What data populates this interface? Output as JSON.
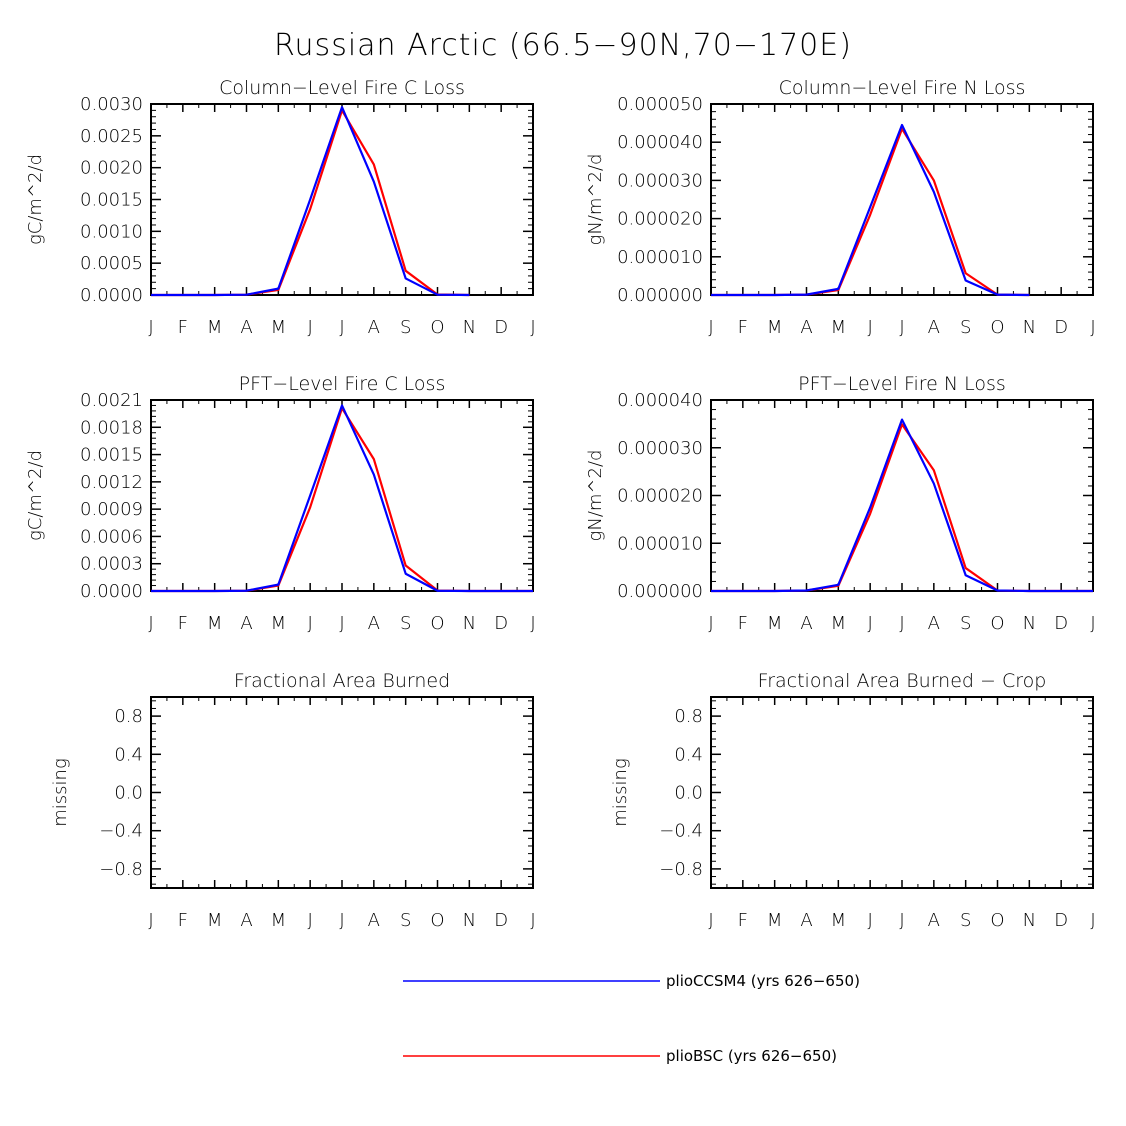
{
  "title": "Russian Arctic (66.5−90N,70−170E)",
  "colors": {
    "series_1": "#0000ff",
    "series_2": "#ff0000",
    "axes": "#000000"
  },
  "chart_data": [
    {
      "type": "line",
      "title": "Column−Level Fire C Loss",
      "ylabel": "gC/m^2/d",
      "xlabel": "",
      "categories": [
        "J",
        "F",
        "M",
        "A",
        "M",
        "J",
        "J",
        "A",
        "S",
        "O",
        "N",
        "D",
        "J"
      ],
      "ylim": [
        0,
        0.003
      ],
      "yticks": [
        "0.0030",
        "0.0025",
        "0.0020",
        "0.0015",
        "0.0010",
        "0.0005",
        "0.0000"
      ],
      "series": [
        {
          "name": "plioCCSM4 (yrs 626−650)",
          "color": "#0000ff",
          "values": [
            0,
            0,
            0,
            5e-06,
            0.0001,
            0.0015,
            0.00295,
            0.00178,
            0.00026,
            5e-06,
            0,
            null,
            null
          ]
        },
        {
          "name": "plioBSC (yrs 626−650)",
          "color": "#ff0000",
          "values": [
            0,
            0,
            0,
            5e-06,
            8e-05,
            0.00135,
            0.0029,
            0.00205,
            0.00038,
            8e-06,
            0,
            null,
            null
          ]
        }
      ]
    },
    {
      "type": "line",
      "title": "Column−Level Fire N Loss",
      "ylabel": "gN/m^2/d",
      "xlabel": "",
      "categories": [
        "J",
        "F",
        "M",
        "A",
        "M",
        "J",
        "J",
        "A",
        "S",
        "O",
        "N",
        "D",
        "J"
      ],
      "ylim": [
        0,
        5e-05
      ],
      "yticks": [
        "0.000050",
        "0.000040",
        "0.000030",
        "0.000020",
        "0.000010",
        "0.000000"
      ],
      "series": [
        {
          "name": "plioCCSM4 (yrs 626−650)",
          "color": "#0000ff",
          "values": [
            0,
            0,
            0,
            1e-07,
            1.6e-06,
            2.3e-05,
            4.45e-05,
            2.7e-05,
            3.8e-06,
            1e-07,
            0,
            null,
            null
          ]
        },
        {
          "name": "plioBSC (yrs 626−650)",
          "color": "#ff0000",
          "values": [
            0,
            0,
            0,
            1e-07,
            1.3e-06,
            2.1e-05,
            4.35e-05,
            3e-05,
            5.7e-06,
            1e-07,
            0,
            null,
            null
          ]
        }
      ]
    },
    {
      "type": "line",
      "title": "PFT−Level Fire C Loss",
      "ylabel": "gC/m^2/d",
      "xlabel": "",
      "categories": [
        "J",
        "F",
        "M",
        "A",
        "M",
        "J",
        "J",
        "A",
        "S",
        "O",
        "N",
        "D",
        "J"
      ],
      "ylim": [
        0,
        0.0021
      ],
      "yticks": [
        "0.0021",
        "0.0018",
        "0.0015",
        "0.0012",
        "0.0009",
        "0.0006",
        "0.0003",
        "0.0000"
      ],
      "series": [
        {
          "name": "plioCCSM4 (yrs 626−650)",
          "color": "#0000ff",
          "values": [
            0,
            0,
            0,
            3e-06,
            7e-05,
            0.00105,
            0.00204,
            0.00128,
            0.00019,
            3e-06,
            0,
            0,
            0
          ]
        },
        {
          "name": "plioBSC (yrs 626−650)",
          "color": "#ff0000",
          "values": [
            0,
            0,
            0,
            3e-06,
            6e-05,
            0.00092,
            0.00201,
            0.00145,
            0.00028,
            5e-06,
            0,
            0,
            0
          ]
        }
      ]
    },
    {
      "type": "line",
      "title": "PFT−Level Fire N Loss",
      "ylabel": "gN/m^2/d",
      "xlabel": "",
      "categories": [
        "J",
        "F",
        "M",
        "A",
        "M",
        "J",
        "J",
        "A",
        "S",
        "O",
        "N",
        "D",
        "J"
      ],
      "ylim": [
        0,
        4e-05
      ],
      "yticks": [
        "0.000040",
        "0.000030",
        "0.000020",
        "0.000010",
        "0.000000"
      ],
      "series": [
        {
          "name": "plioCCSM4 (yrs 626−650)",
          "color": "#0000ff",
          "values": [
            0,
            0,
            0,
            1e-07,
            1.3e-06,
            1.75e-05,
            3.59e-05,
            2.25e-05,
            3.3e-06,
            1e-07,
            0,
            0,
            0
          ]
        },
        {
          "name": "plioBSC (yrs 626−650)",
          "color": "#ff0000",
          "values": [
            0,
            0,
            0,
            1e-07,
            1.1e-06,
            1.62e-05,
            3.49e-05,
            2.53e-05,
            4.8e-06,
            1e-07,
            0,
            0,
            0
          ]
        }
      ]
    },
    {
      "type": "line",
      "title": "Fractional Area Burned",
      "ylabel": "missing",
      "xlabel": "",
      "categories": [
        "J",
        "F",
        "M",
        "A",
        "M",
        "J",
        "J",
        "A",
        "S",
        "O",
        "N",
        "D",
        "J"
      ],
      "ylim": [
        -1,
        1
      ],
      "yticks": [
        "0.8",
        "0.4",
        "0.0",
        "−0.4",
        "−0.8"
      ],
      "series": []
    },
    {
      "type": "line",
      "title": "Fractional Area Burned − Crop",
      "ylabel": "missing",
      "xlabel": "",
      "categories": [
        "J",
        "F",
        "M",
        "A",
        "M",
        "J",
        "J",
        "A",
        "S",
        "O",
        "N",
        "D",
        "J"
      ],
      "ylim": [
        -1,
        1
      ],
      "yticks": [
        "0.8",
        "0.4",
        "0.0",
        "−0.4",
        "−0.8"
      ],
      "series": []
    }
  ],
  "legend": {
    "position": "bottom-center",
    "entries": [
      {
        "label": "plioCCSM4 (yrs 626−650)",
        "color": "#0000ff"
      },
      {
        "label": "plioBSC (yrs 626−650)",
        "color": "#ff0000"
      }
    ]
  }
}
